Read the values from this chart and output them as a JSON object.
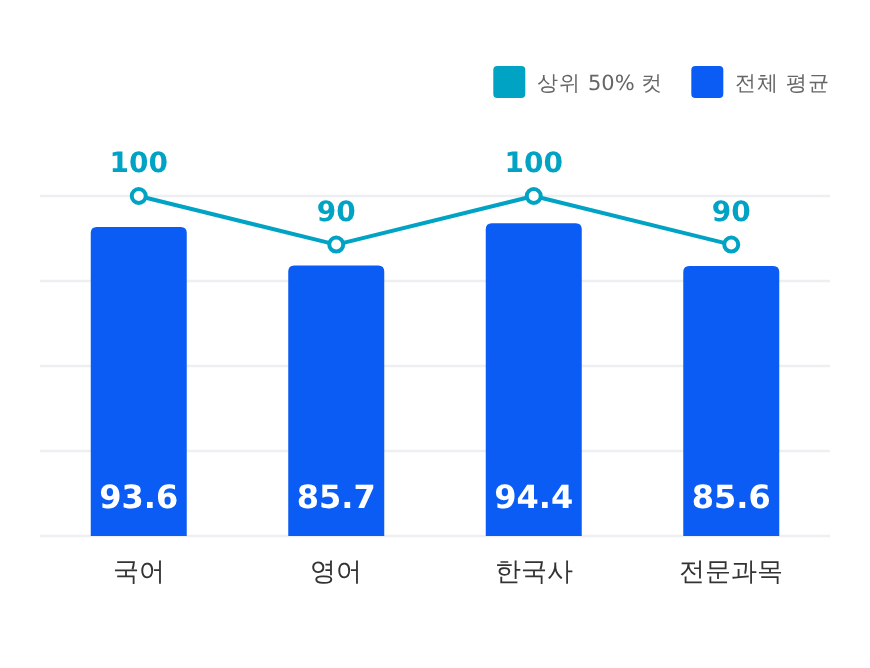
{
  "chart_data": {
    "type": "bar",
    "categories": [
      "국어",
      "영어",
      "한국사",
      "전문과목"
    ],
    "series": [
      {
        "name": "상위 50% 컷",
        "type": "line",
        "color": "#00a3c4",
        "values": [
          100,
          90,
          100,
          90
        ],
        "marker": "circle"
      },
      {
        "name": "전체 평균",
        "color": "#0a5cf5",
        "values": [
          93.6,
          85.7,
          94.4,
          85.6
        ]
      }
    ],
    "ylim": [
      30,
      100
    ],
    "yticks": [
      {
        "value": 30,
        "label": null
      },
      {
        "value": 47.5,
        "label": null
      },
      {
        "value": 65,
        "label": null
      },
      {
        "value": 82.5,
        "label": null
      },
      {
        "value": 100,
        "label": null
      }
    ],
    "tick_labels": "x",
    "grid": "y",
    "legend": "top right",
    "data_labels": true
  }
}
